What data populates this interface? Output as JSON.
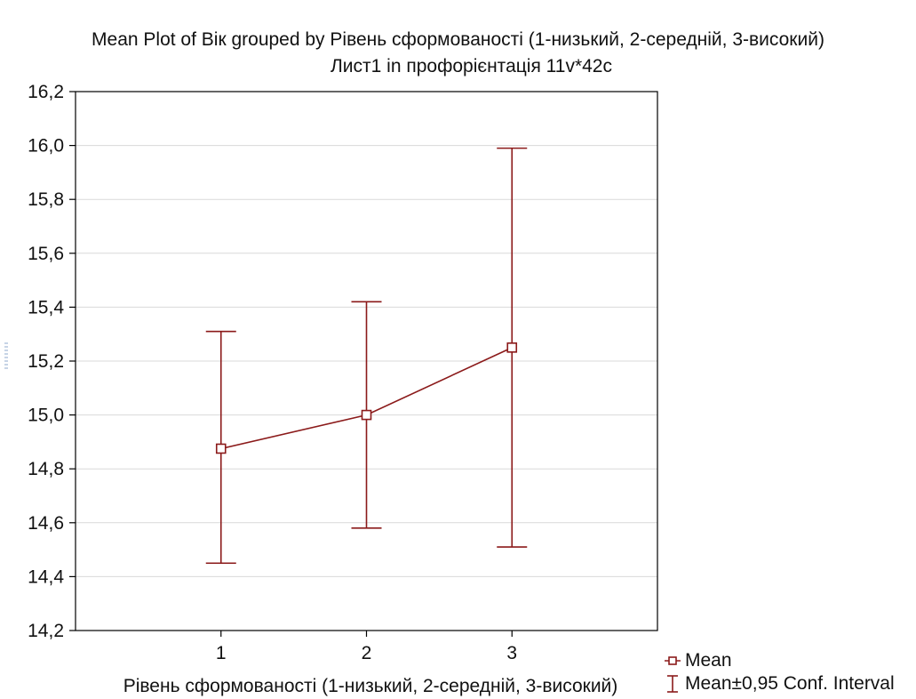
{
  "chart_data": {
    "type": "line",
    "title": "Mean Plot of Вік grouped by  Рівень сформованості (1-низький, 2-середній, 3-високий)",
    "subtitle": "Лист1 in профорієнтація 11v*42c",
    "xlabel": "Рівень сформованості (1-низький, 2-середній, 3-високий)",
    "ylabel": "",
    "categories": [
      "1",
      "2",
      "3"
    ],
    "ylim": [
      14.2,
      16.2
    ],
    "yticks": [
      "14,2",
      "14,4",
      "14,6",
      "14,8",
      "15,0",
      "15,2",
      "15,4",
      "15,6",
      "15,8",
      "16,0",
      "16,2"
    ],
    "yticks_values": [
      14.2,
      14.4,
      14.6,
      14.8,
      15.0,
      15.2,
      15.4,
      15.6,
      15.8,
      16.0,
      16.2
    ],
    "series": [
      {
        "name": "Mean",
        "values": [
          14.875,
          15.0,
          15.25
        ],
        "ci_lower": [
          14.45,
          14.58,
          14.51
        ],
        "ci_upper": [
          15.31,
          15.42,
          15.99
        ]
      }
    ],
    "legend": {
      "position": "bottom-right",
      "items": [
        "Mean",
        "Mean±0,95 Conf. Interval"
      ]
    },
    "colors": {
      "series": "#8b1a1a",
      "frame": "#000000",
      "grid": "#d9d9d9"
    },
    "grid": true
  }
}
